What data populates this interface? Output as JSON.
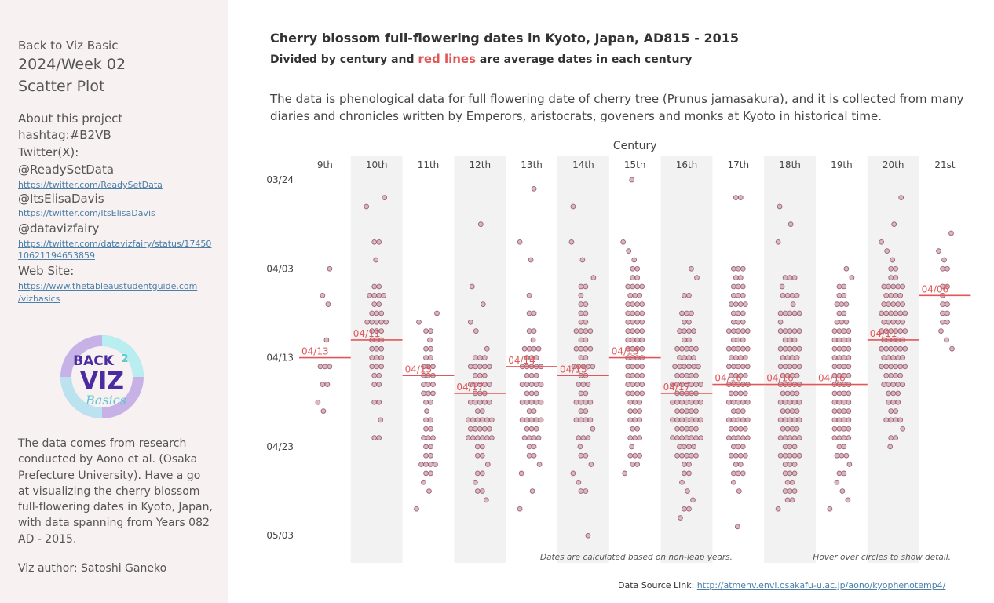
{
  "sidebar": {
    "back": "Back to Viz Basic",
    "week": "2024/Week 02",
    "viz_type": "Scatter Plot",
    "about": "About this project",
    "hashtag": "hashtag:#B2VB",
    "twitter_label": "Twitter(X):",
    "handles": [
      {
        "handle": "@ReadySetData",
        "link": "https://twitter.com/ReadySetData"
      },
      {
        "handle": "@ItsElisaDavis",
        "link": "https://twitter.com/ItsElisaDavis"
      },
      {
        "handle": "@datavizfairy",
        "link1": "https://twitter.com/datavizfairy/status/17450",
        "link2": "10621194653859"
      }
    ],
    "website_label": "Web Site:",
    "website_link1": "https://www.thetableaustudentguide.com",
    "website_link2": "/vizbasics",
    "logo_text": {
      "top": "BACK",
      "num": "2",
      "mid": "VIZ",
      "bottom": "Basics"
    },
    "description": "The data comes from research conducted by Aono et al. (Osaka Prefecture University). Have a go at visualizing the cherry blossom full-flowering dates in Kyoto, Japan, with data spanning from Years 082 AD - 2015.",
    "author": "Viz author: Satoshi Ganeko"
  },
  "header": {
    "title": "Cherry blossom full-flowering dates in Kyoto, Japan, AD815 - 2015",
    "subtitle_pre": "Divided by century and ",
    "subtitle_red": "red lines",
    "subtitle_post": " are average dates in each century",
    "description": "The data is phenological data for full flowering date of cherry tree (Prunus jamasakura), and it is collected from many diaries and chronicles written by Emperors, aristocrats, goveners and monks at Kyoto in historical time."
  },
  "footer": {
    "label": "Data Source Link: ",
    "link": "http://atmenv.envi.osakafu-u.ac.jp/aono/kyophenotemp4/"
  },
  "chart_data": {
    "type": "scatter",
    "title": "",
    "xlabel": "Century",
    "ylabel": "",
    "y_ticks": [
      "03/24",
      "04/03",
      "04/13",
      "04/23",
      "05/03"
    ],
    "y_tick_days": [
      83,
      93,
      103,
      113,
      123
    ],
    "ylim_days": [
      80,
      127
    ],
    "colors": {
      "point_fill": "#d9b8c2",
      "point_stroke": "#9a6272",
      "avg_line": "#e15759",
      "band": "#f2f2f2"
    },
    "annotations": [
      "Dates are calculated based on non-leap years.",
      "Hover over circles to show detail."
    ],
    "centuries": [
      {
        "label": "9th",
        "avg": "04/13",
        "avg_day": 103,
        "days": [
          93,
          97,
          96,
          101,
          106,
          108,
          106,
          104,
          109,
          104,
          104
        ]
      },
      {
        "label": "10th",
        "avg": "04/11",
        "avg_day": 101,
        "days": [
          99,
          95,
          90,
          90,
          86,
          85,
          92,
          95,
          96,
          97,
          98,
          99,
          100,
          101,
          102,
          103,
          104,
          105,
          106,
          108,
          110,
          112,
          96,
          98,
          99,
          100,
          101,
          102,
          103,
          104,
          105,
          96,
          99,
          101,
          102,
          104,
          106,
          108,
          112,
          96,
          97,
          98,
          99,
          100,
          103
        ]
      },
      {
        "label": "11th",
        "avg": "04/15",
        "avg_day": 105,
        "days": [
          107,
          108,
          113,
          115,
          116,
          117,
          118,
          110,
          111,
          112,
          113,
          114,
          115,
          116,
          104,
          105,
          106,
          107,
          108,
          109,
          110,
          111,
          112,
          114,
          115,
          120,
          102,
          103,
          104,
          105,
          106,
          100,
          101,
          102,
          103,
          104,
          105,
          106,
          107,
          112,
          115,
          98,
          99,
          100
        ]
      },
      {
        "label": "12th",
        "avg": "04/17",
        "avg_day": 107,
        "days": [
          104,
          106,
          108,
          110,
          110,
          111,
          112,
          104,
          105,
          106,
          107,
          108,
          109,
          110,
          111,
          112,
          113,
          114,
          103,
          104,
          106,
          108,
          110,
          111,
          112,
          113,
          115,
          116,
          118,
          88,
          95,
          97,
          99,
          100,
          102,
          103,
          104,
          105,
          106,
          107,
          108,
          110,
          111,
          112,
          112,
          103,
          104,
          105,
          106,
          107,
          108,
          109,
          110,
          111,
          112,
          114,
          116,
          117,
          118,
          119
        ]
      },
      {
        "label": "13th",
        "avg": "04/14",
        "avg_day": 104,
        "days": [
          102,
          103,
          104,
          105,
          106,
          107,
          108,
          110,
          111,
          112,
          98,
          100,
          101,
          102,
          104,
          105,
          106,
          107,
          108,
          109,
          110,
          111,
          112,
          113,
          114,
          116,
          118,
          120,
          84,
          90,
          92,
          96,
          98,
          100,
          102,
          104,
          106,
          108,
          110,
          112,
          102,
          103,
          104,
          105,
          106,
          107,
          108,
          109,
          110,
          111,
          112,
          113,
          114,
          115,
          103,
          104,
          106,
          108,
          110
        ]
      },
      {
        "label": "14th",
        "avg": "04/15",
        "avg_day": 105,
        "days": [
          92,
          95,
          97,
          99,
          100,
          102,
          104,
          106,
          108,
          110,
          96,
          98,
          100,
          102,
          104,
          106,
          108,
          110,
          112,
          114,
          116,
          118,
          95,
          97,
          99,
          101,
          102,
          103,
          104,
          105,
          106,
          107,
          108,
          109,
          110,
          111,
          112,
          113,
          114,
          115,
          117,
          86,
          90,
          94,
          98,
          100,
          101,
          102,
          103,
          104,
          105,
          107,
          108,
          109,
          110,
          112,
          123,
          118,
          100,
          104
        ]
      },
      {
        "label": "15th",
        "avg": "04/13",
        "avg_day": 103,
        "days": [
          83,
          91,
          95,
          97,
          99,
          100,
          101,
          102,
          103,
          104,
          105,
          106,
          107,
          108,
          109,
          110,
          111,
          112,
          114,
          93,
          96,
          98,
          99,
          100,
          101,
          102,
          103,
          104,
          105,
          106,
          107,
          108,
          109,
          110,
          111,
          112,
          113,
          114,
          115,
          116,
          90,
          92,
          94,
          95,
          96,
          97,
          98,
          99,
          100,
          101,
          102,
          103,
          104,
          105,
          106,
          107,
          108,
          110,
          114,
          115,
          95,
          97,
          98,
          99,
          101,
          103,
          105,
          107,
          109,
          112,
          93,
          94,
          95,
          96,
          97,
          98,
          100,
          102,
          104,
          106
        ]
      },
      {
        "label": "16th",
        "avg": "04/17",
        "avg_day": 107,
        "days": [
          103,
          105,
          106,
          107,
          108,
          109,
          110,
          111,
          112,
          113,
          115,
          116,
          104,
          105,
          106,
          107,
          108,
          109,
          110,
          111,
          112,
          113,
          114,
          116,
          117,
          118,
          119,
          120,
          121,
          102,
          103,
          104,
          105,
          106,
          107,
          108,
          109,
          110,
          111,
          112,
          113,
          114,
          115,
          120,
          100,
          102,
          104,
          106,
          108,
          110,
          112,
          114,
          98,
          99,
          100,
          101,
          102,
          103,
          104,
          105,
          106,
          107,
          108,
          109,
          110,
          111,
          112,
          113,
          114,
          94,
          96,
          98,
          99,
          100,
          101,
          102,
          103,
          104,
          105,
          106,
          107,
          108,
          109,
          110,
          111,
          112,
          93,
          96,
          98,
          100,
          102,
          104,
          106,
          108,
          110,
          112,
          114
        ]
      },
      {
        "label": "17th",
        "avg": "04/16",
        "avg_day": 106,
        "days": [
          85,
          97,
          100,
          102,
          104,
          106,
          108,
          110,
          112,
          114,
          122,
          96,
          98,
          99,
          100,
          101,
          102,
          103,
          104,
          105,
          106,
          107,
          108,
          109,
          110,
          111,
          112,
          113,
          114,
          115,
          116,
          117,
          118,
          85,
          93,
          95,
          97,
          99,
          100,
          101,
          102,
          103,
          104,
          105,
          106,
          107,
          108,
          109,
          110,
          111,
          112,
          113,
          114,
          116,
          94,
          96,
          98,
          100,
          102,
          103,
          104,
          105,
          106,
          107,
          108,
          109,
          110,
          111,
          112,
          113,
          115,
          93,
          95,
          97,
          98,
          99,
          100,
          101,
          102,
          103,
          104,
          105,
          106,
          107,
          108,
          110,
          111,
          112,
          114,
          116,
          93,
          94,
          95,
          96,
          97
        ]
      },
      {
        "label": "18th",
        "avg": "04/16",
        "avg_day": 106,
        "days": [
          95,
          98,
          100,
          102,
          103,
          104,
          105,
          106,
          107,
          108,
          109,
          110,
          111,
          112,
          113,
          114,
          115,
          116,
          118,
          120,
          94,
          96,
          97,
          98,
          99,
          100,
          101,
          102,
          103,
          104,
          105,
          106,
          107,
          108,
          109,
          110,
          111,
          112,
          113,
          114,
          115,
          116,
          117,
          118,
          119,
          94,
          96,
          98,
          100,
          101,
          102,
          103,
          104,
          105,
          106,
          107,
          108,
          109,
          110,
          111,
          112,
          113,
          114,
          115,
          117,
          86,
          88,
          90,
          96,
          98,
          100,
          101,
          102,
          103,
          104,
          105,
          106,
          107,
          108,
          109,
          110,
          111,
          112,
          114,
          94,
          96,
          98,
          100,
          102,
          104,
          106,
          108,
          110,
          112,
          114,
          116,
          118,
          119
        ]
      },
      {
        "label": "19th",
        "avg": "04/16",
        "avg_day": 106,
        "days": [
          93,
          95,
          97,
          99,
          100,
          101,
          102,
          103,
          104,
          105,
          106,
          107,
          108,
          109,
          110,
          111,
          112,
          114,
          94,
          96,
          98,
          100,
          101,
          102,
          103,
          104,
          105,
          106,
          107,
          108,
          109,
          110,
          111,
          112,
          113,
          114,
          116,
          118,
          120,
          95,
          97,
          99,
          100,
          101,
          102,
          103,
          104,
          105,
          106,
          107,
          108,
          109,
          110,
          111,
          112,
          113,
          115,
          117,
          119,
          96,
          98,
          100,
          102,
          104,
          106,
          108,
          110,
          112,
          114,
          116,
          97,
          99,
          101,
          103,
          105,
          107,
          109,
          111
        ]
      },
      {
        "label": "20th",
        "avg": "04/11",
        "avg_day": 101,
        "days": [
          95,
          97,
          98,
          99,
          100,
          101,
          102,
          103,
          104,
          105,
          106,
          107,
          108,
          109,
          110,
          112,
          113,
          96,
          97,
          98,
          99,
          100,
          101,
          102,
          103,
          104,
          105,
          106,
          107,
          108,
          109,
          110,
          111,
          112,
          95,
          96,
          97,
          98,
          99,
          100,
          101,
          102,
          103,
          104,
          105,
          106,
          107,
          108,
          110,
          93,
          94,
          95,
          96,
          97,
          98,
          99,
          100,
          101,
          102,
          103,
          104,
          105,
          106,
          90,
          92,
          93,
          94,
          95,
          96,
          97,
          98,
          99,
          100,
          101,
          102,
          103,
          104,
          85,
          88,
          91,
          95,
          98,
          100,
          102,
          104,
          106,
          110
        ]
      },
      {
        "label": "21st",
        "avg": "04/06",
        "avg_day": 96,
        "days": [
          91,
          92,
          93,
          95,
          97,
          98,
          99,
          101,
          89,
          93,
          95,
          96,
          97,
          98,
          99,
          100,
          102
        ]
      }
    ]
  }
}
